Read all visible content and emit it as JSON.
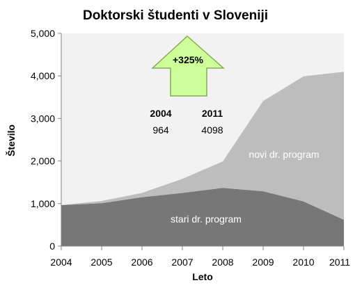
{
  "chart_data": {
    "type": "area",
    "stacked": true,
    "title": "Doktorski študenti v Sloveniji",
    "xlabel": "Leto",
    "ylabel": "Število",
    "x": [
      "2004",
      "2005",
      "2006",
      "2007",
      "2008",
      "2009",
      "2010",
      "2011"
    ],
    "ylim": [
      0,
      5000
    ],
    "yticks": [
      "0",
      "1,000",
      "2,000",
      "3,000",
      "4,000",
      "5,000"
    ],
    "y_tick_values": [
      0,
      1000,
      2000,
      3000,
      4000,
      5000
    ],
    "grid": false,
    "legend": "none",
    "series": [
      {
        "name": "stari dr. program",
        "color": "#777777",
        "values": [
          964,
          1010,
          1150,
          1250,
          1370,
          1290,
          1050,
          620
        ]
      },
      {
        "name": "novi dr. program",
        "color": "#bdbdbd",
        "values": [
          0,
          50,
          100,
          330,
          620,
          2120,
          2940,
          3478
        ]
      }
    ],
    "annotations": {
      "arrow_label": "+325%",
      "arrow_color": "#ccff99",
      "arrow_border": "#88aa55",
      "year_start": "2004",
      "year_end": "2011",
      "value_start": "964",
      "value_end": "4098"
    }
  }
}
